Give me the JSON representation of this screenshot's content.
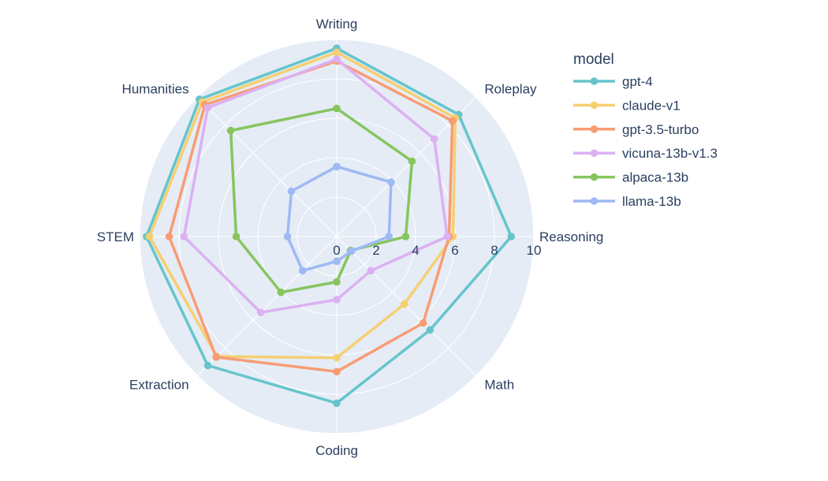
{
  "chart_data": {
    "type": "radar",
    "title": "",
    "categories": [
      "Writing",
      "Roleplay",
      "Reasoning",
      "Math",
      "Coding",
      "Extraction",
      "STEM",
      "Humanities"
    ],
    "radial_axis": {
      "range": [
        0,
        10
      ],
      "ticks": [
        0,
        2,
        4,
        6,
        8,
        10
      ],
      "tick_labels": [
        "0",
        "2",
        "4",
        "6",
        "8",
        "10"
      ]
    },
    "grid": true,
    "legend_position": "right",
    "legend_title": "model",
    "series": [
      {
        "name": "gpt-4",
        "color": "#66C5CC",
        "values": [
          9.55,
          8.75,
          8.85,
          6.7,
          8.45,
          9.25,
          9.65,
          9.85
        ]
      },
      {
        "name": "claude-v1",
        "color": "#F6CF71",
        "values": [
          9.35,
          8.5,
          5.9,
          4.85,
          6.15,
          8.6,
          9.5,
          9.65
        ]
      },
      {
        "name": "gpt-3.5-turbo",
        "color": "#F89C74",
        "values": [
          8.9,
          8.3,
          5.7,
          6.2,
          6.85,
          8.65,
          8.5,
          9.45
        ]
      },
      {
        "name": "vicuna-13b-v1.3",
        "color": "#DCB0F2",
        "values": [
          9.0,
          7.0,
          5.6,
          2.45,
          3.2,
          5.45,
          7.75,
          9.25
        ]
      },
      {
        "name": "alpaca-13b",
        "color": "#87C55F",
        "values": [
          6.5,
          5.4,
          3.5,
          1.0,
          2.3,
          4.0,
          5.1,
          7.6
        ]
      },
      {
        "name": "llama-13b",
        "color": "#9EB9F3",
        "values": [
          3.55,
          3.9,
          2.65,
          1.05,
          1.25,
          2.45,
          2.5,
          3.25
        ]
      }
    ]
  },
  "colors": {
    "text": "#2a3f5f",
    "polar_background": "#E5ECF6",
    "grid_line": "#ffffff",
    "page_background": "#ffffff"
  }
}
